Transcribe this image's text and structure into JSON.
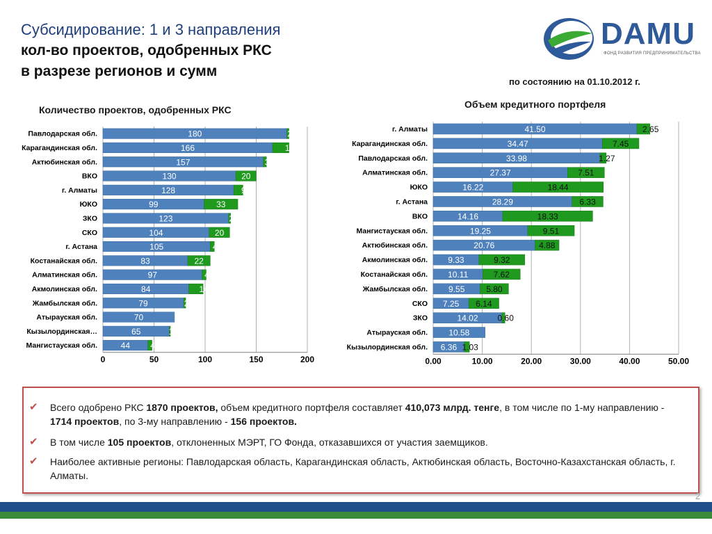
{
  "header": {
    "title_line1": "Субсидирование: 1 и 3 направления",
    "title_line2": "кол-во проектов, одобренных РКС",
    "title_line3": "в разрезе регионов и сумм",
    "date": "по состоянию на 01.10.2012 г."
  },
  "logo": {
    "text": "DAMU",
    "subtitle": "ФОНД РАЗВИТИЯ ПРЕДПРИНИМАТЕЛЬСТВА"
  },
  "colors": {
    "direction1": "#4f81bd",
    "direction3": "#1f9a1f",
    "title_blue": "#1f3f7a",
    "box_border": "#c0504d"
  },
  "chart_data": [
    {
      "type": "bar",
      "orientation": "horizontal",
      "stacked": true,
      "title": "Количество проектов, одобренных РКС",
      "categories": [
        "Павлодарская обл.",
        "Карагандинская обл.",
        "Актюбинская обл.",
        "ВКО",
        "г. Алматы",
        "ЮКО",
        "ЗКО",
        "СКО",
        "г. Астана",
        "Костанайская обл.",
        "Алматинская обл.",
        "Акмолинская обл.",
        "Жамбылская обл.",
        "Атырауская обл.",
        "Кызылординская…",
        "Мангистауская обл."
      ],
      "series": [
        {
          "values": [
            180,
            166,
            157,
            130,
            128,
            99,
            123,
            104,
            105,
            83,
            97,
            84,
            79,
            70,
            65,
            44
          ]
        },
        {
          "values": [
            2,
            16,
            3,
            20,
            9,
            33,
            2,
            20,
            4,
            22,
            4,
            14,
            2,
            0,
            1,
            4
          ]
        }
      ],
      "xlim": [
        0,
        200
      ],
      "xticks": [
        "0",
        "50",
        "100",
        "150",
        "200"
      ],
      "grid": true
    },
    {
      "type": "bar",
      "orientation": "horizontal",
      "stacked": true,
      "title": "Объем кредитного портфеля",
      "categories": [
        "г. Алматы",
        "Карагандинская обл.",
        "Павлодарская обл.",
        "Алматинская обл.",
        "ЮКО",
        "г. Астана",
        "ВКО",
        "Мангистауская обл.",
        "Актюбинская обл.",
        "Акмолинская обл.",
        "Костанайская обл.",
        "Жамбылская обл.",
        "СКО",
        "ЗКО",
        "Атырауская обл.",
        "Кызылординская обл."
      ],
      "series": [
        {
          "values": [
            41.5,
            34.47,
            33.98,
            27.37,
            16.22,
            28.29,
            14.16,
            19.25,
            20.76,
            9.33,
            10.11,
            9.55,
            7.25,
            14.02,
            10.58,
            6.36
          ]
        },
        {
          "values": [
            2.65,
            7.45,
            1.27,
            7.51,
            18.44,
            6.33,
            18.33,
            9.51,
            4.88,
            9.32,
            7.62,
            5.8,
            6.14,
            0.6,
            0,
            1.03
          ]
        }
      ],
      "value_labels_1": [
        "41.50",
        "34.47",
        "33.98",
        "27.37",
        "16.22",
        "28.29",
        "14.16",
        "19.25",
        "20.76",
        "9.33",
        "10.11",
        "9.55",
        "7.25",
        "14.02",
        "10.58",
        "6.36"
      ],
      "value_labels_2": [
        "2.65",
        "7.45",
        "1.27",
        "7.51",
        "18.44",
        "6.33",
        "18.33",
        "9.51",
        "4.88",
        "9.32",
        "7.62",
        "5.80",
        "6.14",
        "0.60",
        "",
        "1.03"
      ],
      "xlim": [
        0,
        50
      ],
      "xticks": [
        "0.00",
        "10.00",
        "20.00",
        "30.00",
        "40.00",
        "50.00"
      ],
      "grid": true
    }
  ],
  "summary": {
    "bullet1_pre": "Всего одобрено РКС ",
    "bullet1_b1": "1870 проектов,",
    "bullet1_mid1": " объем кредитного портфеля составляет ",
    "bullet1_b2": "410,073 млрд. тенге",
    "bullet1_mid2": ", в том числе по 1-му направлению -  ",
    "bullet1_b3": "1714 проектов",
    "bullet1_mid3": ", по 3-му направлению - ",
    "bullet1_b4": "156 проектов.",
    "bullet2_pre": "В том числе ",
    "bullet2_b1": "105 проектов",
    "bullet2_post": ", отклоненных МЭРТ, ГО Фонда, отказавшихся от участия заемщиков.",
    "bullet3": "Наиболее активные регионы: Павлодарская область, Карагандинская область, Актюбинская область, Восточно-Казахстанская область, г. Алматы."
  },
  "page_number": "2"
}
